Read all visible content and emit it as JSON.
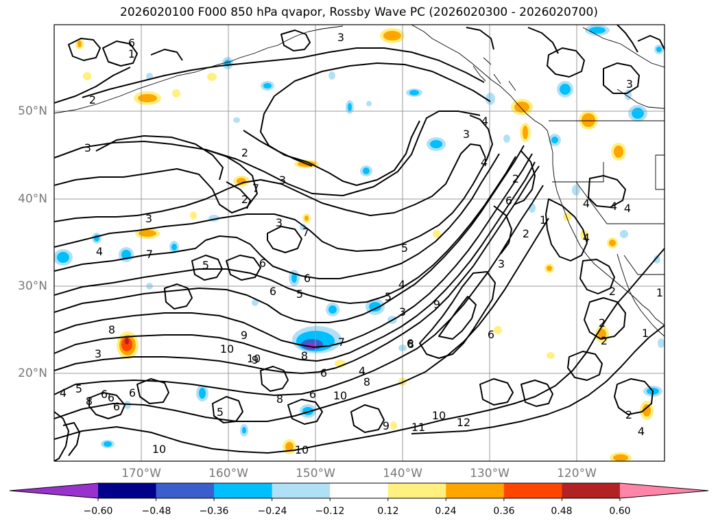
{
  "title": "2026020100 F000 850 hPa qvapor, Rossby Wave PC (2026020300 - 2026020700)",
  "latitude_labels": [
    "50°N",
    "40°N",
    "30°N",
    "20°N"
  ],
  "longitude_labels": [
    "170°W",
    "160°W",
    "150°W",
    "140°W",
    "130°W",
    "120°W"
  ],
  "colorbar": {
    "tick_labels": [
      "−0.60",
      "−0.48",
      "−0.36",
      "−0.24",
      "−0.12",
      "0.12",
      "0.24",
      "0.36",
      "0.48",
      "0.60"
    ],
    "colors": [
      "#9932cc",
      "#00008b",
      "#3a5fcd",
      "#00bfff",
      "#b0e0f6",
      "#ffffff",
      "#fff080",
      "#ffa500",
      "#ff4500",
      "#b22222",
      "#ff85a8"
    ]
  },
  "contour_labels": [
    "3",
    "6",
    "1",
    "2",
    "3",
    "2",
    "3",
    "2",
    "4",
    "3",
    "4",
    "3",
    "7",
    "3",
    "7",
    "4",
    "7",
    "5",
    "5",
    "6",
    "6",
    "5",
    "6",
    "4",
    "5",
    "3",
    "2",
    "6",
    "8",
    "3",
    "9",
    "10",
    "9",
    "8",
    "7",
    "8",
    "6",
    "6",
    "10",
    "8",
    "4",
    "5",
    "6",
    "6",
    "8",
    "10",
    "8",
    "6",
    "6",
    "9",
    "11",
    "10",
    "12",
    "9",
    "10",
    "10",
    "4",
    "5",
    "4",
    "1",
    "2",
    "3",
    "4",
    "4",
    "4",
    "6",
    "6",
    "1",
    "2",
    "2",
    "1",
    "2",
    "2",
    "4",
    "3"
  ],
  "chart_data": {
    "type": "heatmap",
    "title": "2026020100 F000 850 hPa qvapor, Rossby Wave PC (2026020300 - 2026020700)",
    "fill_variable": "Rossby Wave PC",
    "contour_variable": "850 hPa qvapor",
    "lon_range_deg": [
      -180,
      -110
    ],
    "lat_range_deg": [
      10,
      60
    ],
    "xlabel": "",
    "ylabel": "",
    "colorbar_levels": [
      -0.6,
      -0.48,
      -0.36,
      -0.24,
      -0.12,
      0.12,
      0.24,
      0.36,
      0.48,
      0.6
    ],
    "colorbar_extend": "both",
    "contour_levels": [
      1,
      2,
      3,
      4,
      5,
      6,
      7,
      8,
      9,
      10,
      11,
      12
    ],
    "grid": true
  }
}
